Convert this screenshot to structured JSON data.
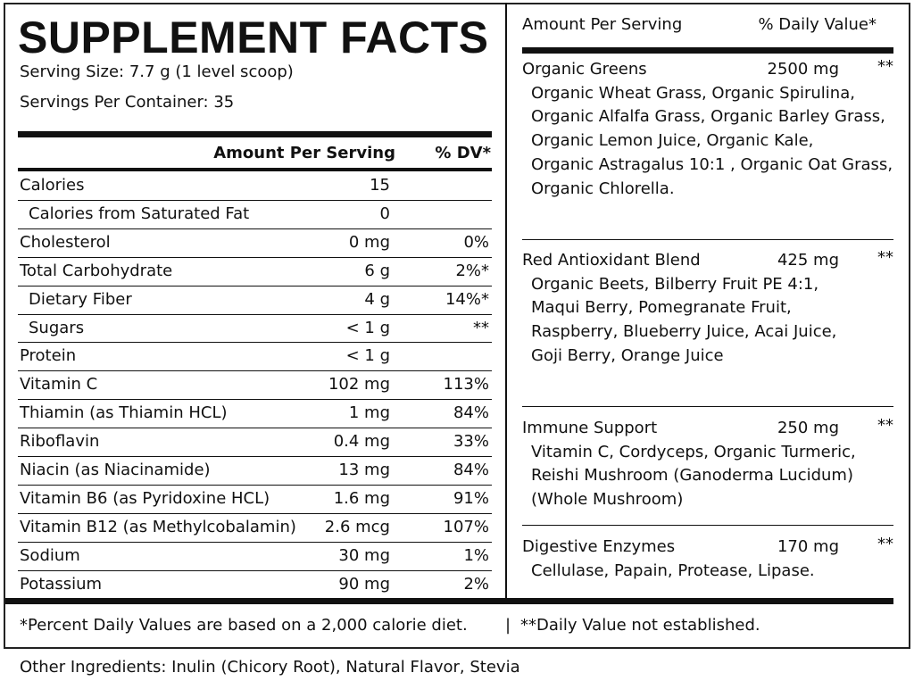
{
  "header": {
    "title": "SUPPLEMENT FACTS",
    "serving_size": "Serving Size:  7.7 g (1 level scoop)",
    "servings_per_container": "Servings Per Container:  35"
  },
  "table": {
    "columns": [
      "Amount Per Serving",
      "% DV*"
    ],
    "rows": [
      {
        "name": "Calories",
        "amount": "15"
      },
      {
        "name": "Calories from Saturated Fat",
        "amount": "0",
        "sub": true
      },
      {
        "name": "Cholesterol",
        "amount": "0 mg",
        "dv": "0%"
      },
      {
        "name": "Total Carbohydrate",
        "amount": "6 g",
        "dv": "2%*"
      },
      {
        "name": "Dietary Fiber",
        "amount": "4 g",
        "dv": "14%*",
        "sub": true
      },
      {
        "name": "Sugars",
        "amount": "< 1 g",
        "dv": "**",
        "sub": true
      },
      {
        "name": "Protein",
        "amount": "< 1 g"
      },
      {
        "name": "Vitamin C",
        "amount": "102 mg",
        "dv": "113%"
      },
      {
        "name": "Thiamin (as Thiamin HCL)",
        "amount": "1 mg",
        "dv": "84%"
      },
      {
        "name": "Riboflavin",
        "amount": "0.4 mg",
        "dv": "33%"
      },
      {
        "name": "Niacin (as Niacinamide)",
        "amount": "13 mg",
        "dv": "84%"
      },
      {
        "name": "Vitamin B6 (as Pyridoxine HCL)",
        "amount": "1.6 mg",
        "dv": "91%"
      },
      {
        "name": "Vitamin B12 (as Methylcobalamin)",
        "amount": "2.6 mcg",
        "dv": "107%"
      },
      {
        "name": "Sodium",
        "amount": "30 mg",
        "dv": "1%"
      },
      {
        "name": "Potassium",
        "amount": "90 mg",
        "dv": "2%"
      }
    ]
  },
  "blends": {
    "columns": [
      "Amount Per Serving",
      "% Daily Value*"
    ],
    "items": [
      {
        "name": "Organic Greens",
        "amount": "2500 mg",
        "dv": "**",
        "ingredients": [
          "Organic Wheat Grass, Organic Spirulina,",
          "Organic Alfalfa Grass, Organic Barley Grass,",
          "Organic Lemon Juice, Organic Kale,",
          "Organic Astragalus 10:1 , Organic Oat Grass,",
          "Organic Chlorella."
        ]
      },
      {
        "name": "Red Antioxidant Blend",
        "amount": "425 mg",
        "dv": "**",
        "ingredients": [
          "Organic Beets, Bilberry Fruit PE 4:1,",
          "Maqui Berry, Pomegranate Fruit,",
          "Raspberry, Blueberry Juice, Acai Juice,",
          "Goji Berry, Orange Juice"
        ]
      },
      {
        "name": "Immune Support",
        "amount": "250 mg",
        "dv": "**",
        "ingredients": [
          "Vitamin C, Cordyceps, Organic Turmeric,",
          "Reishi Mushroom (Ganoderma Lucidum)",
          "(Whole Mushroom)"
        ]
      },
      {
        "name": "Digestive Enzymes",
        "amount": "170 mg",
        "dv": "**",
        "ingredients": [
          "Cellulase, Papain, Protease, Lipase."
        ]
      }
    ]
  },
  "footnote": {
    "left": "*Percent Daily Values are based on a 2,000 calorie diet.",
    "separator": "|",
    "right": "**Daily Value not established."
  },
  "other_ingredients": "Other Ingredients: Inulin (Chicory Root), Natural Flavor, Stevia"
}
